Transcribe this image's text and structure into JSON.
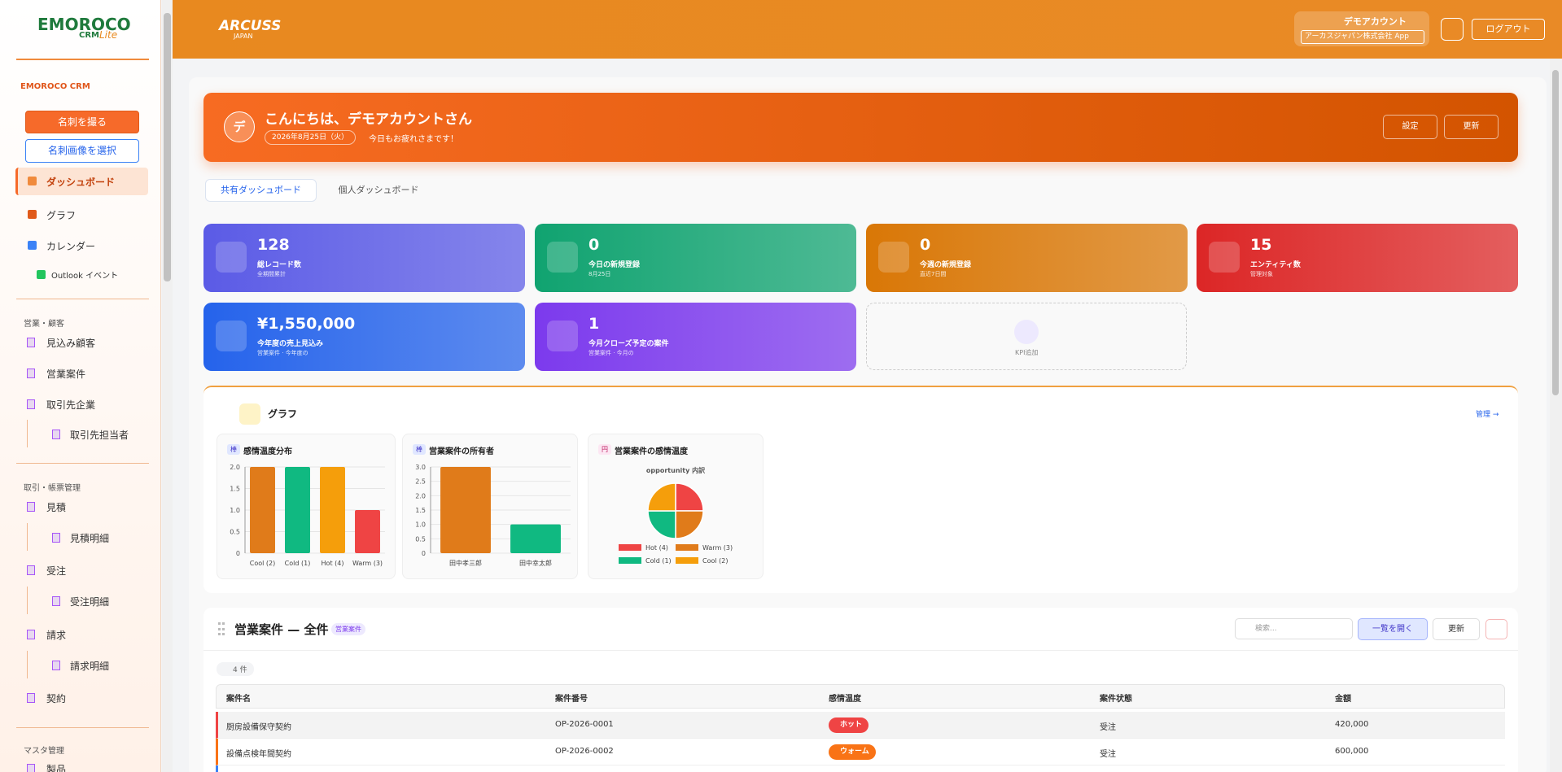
{
  "sidebar": {
    "logo": "EMOROCO",
    "logo_sub": "CRM",
    "logo_lite": "Lite",
    "section": "EMOROCO CRM",
    "buttons": [
      "名刺を撮る",
      "名刺画像を選択"
    ],
    "nav_top": [
      "ダッシュボード",
      "グラフ",
      "カレンダー",
      "Outlook イベント"
    ],
    "groups": [
      {
        "title": "営業・顧客",
        "items": [
          "見込み顧客",
          "営業案件",
          "取引先企業",
          "取引先担当者"
        ]
      },
      {
        "title": "取引・帳票管理",
        "items": [
          "見積",
          "見積明細",
          "受注",
          "受注明細",
          "請求",
          "請求明細",
          "契約"
        ]
      },
      {
        "title": "マスタ管理",
        "items": [
          "製品"
        ]
      }
    ]
  },
  "header": {
    "brand": "ARCUSS",
    "brand_sub": "JAPAN",
    "user": "デモアカウント",
    "company": "アーカスジャパン株式会社 App",
    "logout": "ログアウト"
  },
  "welcome": {
    "avatar": "デ",
    "greeting": "こんにちは、デモアカウントさん",
    "date": "2026年8月25日（火）",
    "message": "今日もお疲れさまです！",
    "buttons": [
      "設定",
      "更新"
    ]
  },
  "tabs": [
    "共有ダッシュボード",
    "個人ダッシュボード"
  ],
  "kpis": [
    {
      "value": "128",
      "label": "総レコード数",
      "sub": "全期間累計",
      "color": "#5b5be6"
    },
    {
      "value": "0",
      "label": "今日の新規登録",
      "sub": "8月25日",
      "color": "#10a370"
    },
    {
      "value": "0",
      "label": "今週の新規登録",
      "sub": "直近7日間",
      "color": "#d97706"
    },
    {
      "value": "15",
      "label": "エンティティ数",
      "sub": "管理対象",
      "color": "#dc2626"
    },
    {
      "value": "¥1,550,000",
      "label": "今年度の売上見込み",
      "sub": "営業案件 · 今年度の",
      "color": "#2563eb"
    },
    {
      "value": "1",
      "label": "今月クローズ予定の案件",
      "sub": "営業案件 · 今月の",
      "color": "#7c3aed"
    }
  ],
  "kpi_add": "KPI追加",
  "graphs": {
    "title": "グラフ",
    "manage": "管理 →",
    "charts": [
      {
        "type": "bar",
        "badge": "棒",
        "title": "感情温度分布",
        "categories": [
          "Cool (2)",
          "Cold (1)",
          "Hot (4)",
          "Warm (3)"
        ],
        "values": [
          2,
          2,
          2,
          1
        ],
        "colors": [
          "#e07b1a",
          "#10b981",
          "#f59e0b",
          "#ef4444"
        ],
        "ylim": [
          0,
          2
        ],
        "yticks": [
          0,
          {
            "value": 0.5,
            "label": "0.5"
          },
          {
            "value": 1,
            "label": "1.0"
          },
          {
            "value": 1.5,
            "label": "1.5"
          },
          {
            "value": 2,
            "label": "2.0"
          }
        ],
        "grid": true
      },
      {
        "type": "bar",
        "badge": "棒",
        "title": "営業案件の所有者",
        "categories": [
          "田中孝三郎",
          "田中幸太郎"
        ],
        "values": [
          3,
          1
        ],
        "colors": [
          "#e07b1a",
          "#10b981"
        ],
        "ylim": [
          0,
          3
        ],
        "yticks": [
          0,
          {
            "value": 0.5,
            "label": "0.5"
          },
          {
            "value": 1,
            "label": "1.0"
          },
          {
            "value": 1.5,
            "label": "1.5"
          },
          {
            "value": 2,
            "label": "2.0"
          },
          {
            "value": 2.5,
            "label": "2.5"
          },
          {
            "value": 3,
            "label": "3.0"
          }
        ],
        "grid": true
      },
      {
        "type": "pie",
        "badge": "円",
        "title": "営業案件の感情温度",
        "subtitle": "opportunity 内訳",
        "categories": [
          "Hot (4)",
          "Warm (3)",
          "Cold (1)",
          "Cool (2)"
        ],
        "values": [
          1,
          1,
          1,
          1
        ],
        "colors": [
          "#ef4444",
          "#e07b1a",
          "#10b981",
          "#f59e0b"
        ]
      }
    ]
  },
  "table": {
    "title": "営業案件 — 全件",
    "badge": "営業案件",
    "search": "検索...",
    "buttons": [
      "一覧を開く",
      "更新"
    ],
    "count": "4 件",
    "columns": [
      "案件名",
      "案件番号",
      "感情温度",
      "案件状態",
      "金額"
    ],
    "rows": [
      [
        "厨房設備保守契約",
        "OP-2026-0001",
        "ホット",
        "受注",
        "420,000"
      ],
      [
        "設備点検年間契約",
        "OP-2026-0002",
        "ウォーム",
        "受注",
        "600,000"
      ]
    ]
  }
}
